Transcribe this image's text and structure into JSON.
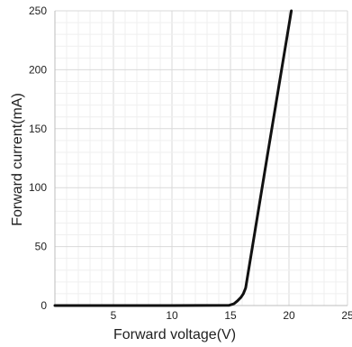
{
  "chart_data": {
    "type": "line",
    "title": "",
    "xlabel": "Forward voltage(V)",
    "ylabel": "Forward current(mA)",
    "xlim": [
      0,
      25
    ],
    "ylim": [
      0,
      250
    ],
    "x_ticks": [
      5,
      10,
      15,
      20,
      25
    ],
    "y_ticks": [
      0,
      50,
      100,
      150,
      200,
      250
    ],
    "grid": true,
    "legend": "none",
    "colors": {
      "line": "#111111",
      "grid": "#e2e2e2",
      "axis": "#bdbdbd"
    },
    "series": [
      {
        "x": [
          0,
          5,
          10,
          14.9,
          15.3,
          15.6,
          15.9,
          16.1,
          16.3,
          18.2,
          20.2
        ],
        "y": [
          0,
          0,
          0,
          0.2,
          1.5,
          4,
          7,
          10,
          15,
          130,
          250
        ]
      }
    ]
  }
}
